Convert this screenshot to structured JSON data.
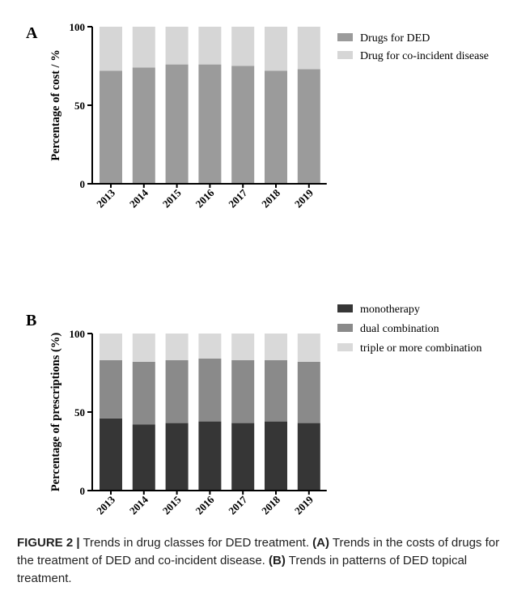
{
  "chart_data": [
    {
      "type": "bar",
      "stacked": true,
      "panel_label": "A",
      "categories": [
        "2013",
        "2014",
        "2015",
        "2016",
        "2017",
        "2018",
        "2019"
      ],
      "ylabel": "Percentage of cost / %",
      "ylim": [
        0,
        100
      ],
      "yticks": [
        "0",
        "50",
        "100"
      ],
      "grid": false,
      "legend_position": "top-right",
      "series": [
        {
          "name": "Drugs for DED",
          "color": "#9b9b9b",
          "values": [
            72,
            74,
            76,
            76,
            75,
            72,
            73
          ]
        },
        {
          "name": "Drug for co-incident disease",
          "color": "#d6d6d6",
          "values": [
            28,
            26,
            24,
            24,
            25,
            28,
            27
          ]
        }
      ]
    },
    {
      "type": "bar",
      "stacked": true,
      "panel_label": "B",
      "categories": [
        "2013",
        "2014",
        "2015",
        "2016",
        "2017",
        "2018",
        "2019"
      ],
      "ylabel": "Percentage of prescriptions (%)",
      "ylim": [
        0,
        100
      ],
      "yticks": [
        "0",
        "50",
        "100"
      ],
      "grid": false,
      "legend_position": "top-right",
      "series": [
        {
          "name": "monotherapy",
          "color": "#363636",
          "values": [
            46,
            42,
            43,
            44,
            43,
            44,
            43
          ]
        },
        {
          "name": "dual combination",
          "color": "#8a8a8a",
          "values": [
            37,
            40,
            40,
            40,
            40,
            39,
            39
          ]
        },
        {
          "name": "triple or more combination",
          "color": "#d9d9d9",
          "values": [
            17,
            18,
            17,
            16,
            17,
            17,
            18
          ]
        }
      ]
    }
  ],
  "caption": {
    "figure_label": "FIGURE 2 |",
    "text1": " Trends in drug classes for DED treatment. ",
    "label_a": "(A)",
    "text2": " Trends in the costs of drugs for the treatment of DED and co-incident disease. ",
    "label_b": "(B)",
    "text3": " Trends in patterns of DED topical treatment."
  }
}
